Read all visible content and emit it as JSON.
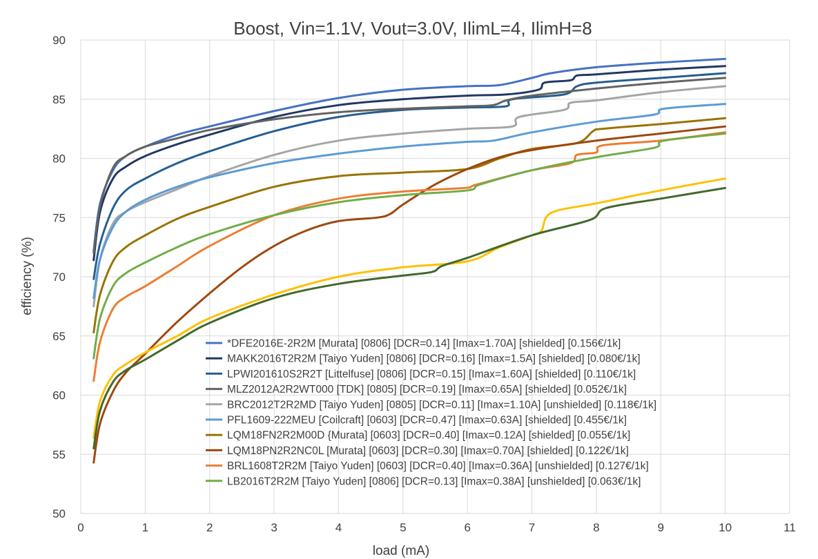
{
  "chart_data": {
    "type": "line",
    "title": "Boost, Vin=1.1V, Vout=3.0V, IlimL=4, IlimH=8",
    "xlabel": "load (mA)",
    "ylabel": "efficiency (%)",
    "xlim": [
      0,
      11
    ],
    "ylim": [
      50,
      90
    ],
    "xticks": [
      0,
      1,
      2,
      3,
      4,
      5,
      6,
      7,
      8,
      9,
      10,
      11
    ],
    "yticks": [
      50,
      55,
      60,
      65,
      70,
      75,
      80,
      85,
      90
    ],
    "grid": true,
    "legend_position": "bottom-right",
    "series": [
      {
        "name": "*DFE2016E-2R2M [Murata] [0806] [DCR=0.14] [Imax=1.70A] [shielded] [0.156€/1k]",
        "color": "#4472c4",
        "points": [
          [
            0.2,
            72.2
          ],
          [
            0.3,
            76.2
          ],
          [
            0.5,
            79.0
          ],
          [
            0.7,
            80.2
          ],
          [
            1,
            81.0
          ],
          [
            1.5,
            82.0
          ],
          [
            2,
            82.7
          ],
          [
            3,
            84.0
          ],
          [
            4,
            85.1
          ],
          [
            5,
            85.8
          ],
          [
            6,
            86.1
          ],
          [
            6.5,
            86.2
          ],
          [
            7,
            86.8
          ],
          [
            7.3,
            87.2
          ],
          [
            8,
            87.7
          ],
          [
            9,
            88.1
          ],
          [
            10,
            88.4
          ]
        ]
      },
      {
        "name": "MAKK2016T2R2M [Taiyo Yuden] [0806] [DCR=0.16] [Imax=1.5A] [shielded] [0.080€/1k]",
        "color": "#203864",
        "points": [
          [
            0.2,
            71.4
          ],
          [
            0.3,
            75.5
          ],
          [
            0.5,
            78.3
          ],
          [
            0.7,
            79.3
          ],
          [
            1,
            80.2
          ],
          [
            1.5,
            81.2
          ],
          [
            2,
            82.0
          ],
          [
            3,
            83.5
          ],
          [
            4,
            84.5
          ],
          [
            5,
            85.0
          ],
          [
            6,
            85.3
          ],
          [
            6.6,
            85.4
          ],
          [
            7.1,
            85.8
          ],
          [
            7.2,
            86.4
          ],
          [
            7.6,
            86.6
          ],
          [
            7.7,
            87.0
          ],
          [
            8,
            87.1
          ],
          [
            9,
            87.5
          ],
          [
            10,
            87.8
          ]
        ]
      },
      {
        "name": "LPWI201610S2R2T [Littelfuse] [0806] [DCR=0.15] [Imax=1.60A] [shielded] [0.110€/1k]",
        "color": "#255e91",
        "points": [
          [
            0.2,
            69.8
          ],
          [
            0.3,
            72.8
          ],
          [
            0.5,
            75.8
          ],
          [
            0.7,
            77.3
          ],
          [
            1,
            78.3
          ],
          [
            1.5,
            79.6
          ],
          [
            2,
            80.6
          ],
          [
            3,
            82.3
          ],
          [
            4,
            83.5
          ],
          [
            5,
            84.1
          ],
          [
            6,
            84.3
          ],
          [
            6.6,
            84.4
          ],
          [
            6.7,
            85.0
          ],
          [
            7.5,
            85.4
          ],
          [
            7.7,
            86.1
          ],
          [
            8,
            86.4
          ],
          [
            9,
            86.8
          ],
          [
            10,
            87.2
          ]
        ]
      },
      {
        "name": "MLZ2012A2R2WT000 [TDK] [0805] [DCR=0.19] [Imax=0.65A] [shielded] [0.052€/1k]",
        "color": "#636363",
        "points": [
          [
            0.2,
            72.0
          ],
          [
            0.3,
            76.0
          ],
          [
            0.5,
            79.2
          ],
          [
            0.7,
            80.2
          ],
          [
            1,
            81.0
          ],
          [
            1.5,
            81.7
          ],
          [
            2,
            82.4
          ],
          [
            3,
            83.3
          ],
          [
            4,
            83.9
          ],
          [
            5,
            84.2
          ],
          [
            6,
            84.4
          ],
          [
            6.4,
            84.5
          ],
          [
            6.6,
            84.9
          ],
          [
            7,
            85.3
          ],
          [
            8,
            85.9
          ],
          [
            9,
            86.4
          ],
          [
            10,
            86.8
          ]
        ]
      },
      {
        "name": "BRC2012T2R2MD [Taiyo Yuden] [0805] [DCR=0.11] [Imax=1.10A] [unshielded] [0.118€/1k]",
        "color": "#a5a5a5",
        "points": [
          [
            0.2,
            67.5
          ],
          [
            0.3,
            71.5
          ],
          [
            0.5,
            74.5
          ],
          [
            0.7,
            75.5
          ],
          [
            1,
            76.3
          ],
          [
            1.5,
            77.4
          ],
          [
            2,
            78.5
          ],
          [
            3,
            80.3
          ],
          [
            4,
            81.5
          ],
          [
            5,
            82.1
          ],
          [
            6,
            82.5
          ],
          [
            6.7,
            82.7
          ],
          [
            6.8,
            83.5
          ],
          [
            7.5,
            84.1
          ],
          [
            7.6,
            84.7
          ],
          [
            8,
            84.9
          ],
          [
            9,
            85.6
          ],
          [
            10,
            86.1
          ]
        ]
      },
      {
        "name": "PFL1609-222MEU [Coilcraft] [0603] [DCR=0.47] [Imax=0.63A] [shielded] [0.455€/1k]",
        "color": "#5b9bd5",
        "points": [
          [
            0.2,
            68.2
          ],
          [
            0.3,
            71.5
          ],
          [
            0.5,
            74.2
          ],
          [
            0.7,
            75.5
          ],
          [
            1,
            76.5
          ],
          [
            1.5,
            77.6
          ],
          [
            2,
            78.4
          ],
          [
            3,
            79.6
          ],
          [
            4,
            80.4
          ],
          [
            5,
            81.0
          ],
          [
            6,
            81.4
          ],
          [
            6.4,
            81.5
          ],
          [
            7,
            82.2
          ],
          [
            8,
            83.1
          ],
          [
            8.9,
            83.7
          ],
          [
            9.05,
            84.2
          ],
          [
            10,
            84.6
          ]
        ]
      },
      {
        "name": "LQM18FN2R2M00D {Murata] [0603] [DCR=0.40] [Imax=0.12A] [shielded] [0.055€/1k]",
        "color": "#997300",
        "points": [
          [
            0.2,
            65.3
          ],
          [
            0.3,
            68.5
          ],
          [
            0.5,
            71.3
          ],
          [
            0.7,
            72.5
          ],
          [
            1,
            73.5
          ],
          [
            1.5,
            74.9
          ],
          [
            2,
            75.9
          ],
          [
            3,
            77.6
          ],
          [
            4,
            78.5
          ],
          [
            5,
            78.8
          ],
          [
            6,
            79.1
          ],
          [
            6.5,
            80.0
          ],
          [
            7,
            80.8
          ],
          [
            7.7,
            81.3
          ],
          [
            7.95,
            82.3
          ],
          [
            8.1,
            82.5
          ],
          [
            9,
            82.9
          ],
          [
            10,
            83.4
          ]
        ]
      },
      {
        "name": "LQM18PN2R2NC0L [Murata] [0603] [DCR=0.30] [Imax=0.70A] [shielded] [0.122€/1k]",
        "color": "#9e480e",
        "points": [
          [
            0.2,
            54.3
          ],
          [
            0.3,
            57.6
          ],
          [
            0.5,
            60.3
          ],
          [
            0.7,
            61.9
          ],
          [
            1,
            63.5
          ],
          [
            1.5,
            66.2
          ],
          [
            2,
            68.6
          ],
          [
            2.5,
            70.8
          ],
          [
            3,
            72.6
          ],
          [
            3.5,
            73.9
          ],
          [
            4,
            74.7
          ],
          [
            4.6,
            75.0
          ],
          [
            4.8,
            75.3
          ],
          [
            5,
            76.1
          ],
          [
            5.5,
            77.8
          ],
          [
            6,
            79.1
          ],
          [
            6.5,
            80.1
          ],
          [
            7,
            80.7
          ],
          [
            8,
            81.5
          ],
          [
            9,
            82.1
          ],
          [
            10,
            82.7
          ]
        ]
      },
      {
        "name": "BRL1608T2R2M [Taiyo Yuden] [0603] [DCR=0.40] [Imax=0.36A] [unshielded] [0.127€/1k]",
        "color": "#ed7d31",
        "points": [
          [
            0.2,
            61.2
          ],
          [
            0.3,
            64.5
          ],
          [
            0.5,
            67.3
          ],
          [
            0.7,
            68.3
          ],
          [
            1,
            69.2
          ],
          [
            1.5,
            70.9
          ],
          [
            2,
            72.6
          ],
          [
            3,
            75.2
          ],
          [
            4,
            76.6
          ],
          [
            5,
            77.2
          ],
          [
            5.95,
            77.5
          ],
          [
            6.15,
            77.8
          ],
          [
            7,
            79.0
          ],
          [
            7.6,
            79.6
          ],
          [
            7.7,
            80.3
          ],
          [
            8,
            80.5
          ],
          [
            8.1,
            81.1
          ],
          [
            9,
            81.5
          ],
          [
            10,
            82.2
          ]
        ]
      },
      {
        "name": "LB2016T2R2M [Taiyo Yuden] [0806] [DCR=0.13] [Imax=0.38A] [unshielded] [0.063€/1k]",
        "color": "#70ad47",
        "points": [
          [
            0.2,
            63.1
          ],
          [
            0.3,
            66.5
          ],
          [
            0.5,
            69.2
          ],
          [
            0.7,
            70.3
          ],
          [
            1,
            71.2
          ],
          [
            1.5,
            72.5
          ],
          [
            2,
            73.6
          ],
          [
            3,
            75.2
          ],
          [
            4,
            76.3
          ],
          [
            5,
            76.9
          ],
          [
            6,
            77.3
          ],
          [
            6.2,
            77.8
          ],
          [
            7,
            79.0
          ],
          [
            8,
            80.1
          ],
          [
            8.9,
            80.9
          ],
          [
            9.05,
            81.5
          ],
          [
            10,
            82.1
          ]
        ]
      },
      {
        "name": "",
        "color": "#ffc000",
        "points": [
          [
            0.2,
            56.4
          ],
          [
            0.3,
            59.5
          ],
          [
            0.5,
            61.7
          ],
          [
            0.7,
            62.6
          ],
          [
            1,
            63.6
          ],
          [
            1.5,
            65.0
          ],
          [
            2,
            66.5
          ],
          [
            3,
            68.5
          ],
          [
            4,
            70.0
          ],
          [
            5,
            70.8
          ],
          [
            6,
            71.3
          ],
          [
            6.5,
            72.5
          ],
          [
            7,
            73.5
          ],
          [
            7.15,
            73.9
          ],
          [
            7.3,
            75.4
          ],
          [
            8,
            76.2
          ],
          [
            9,
            77.3
          ],
          [
            10,
            78.3
          ]
        ]
      },
      {
        "name": "",
        "color": "#43682b",
        "points": [
          [
            0.2,
            55.5
          ],
          [
            0.3,
            58.7
          ],
          [
            0.5,
            61.1
          ],
          [
            0.7,
            62.1
          ],
          [
            1,
            63.0
          ],
          [
            1.5,
            64.6
          ],
          [
            2,
            66.1
          ],
          [
            3,
            68.2
          ],
          [
            4,
            69.4
          ],
          [
            5,
            70.1
          ],
          [
            5.45,
            70.4
          ],
          [
            5.6,
            70.9
          ],
          [
            6,
            71.6
          ],
          [
            7,
            73.5
          ],
          [
            7.9,
            74.8
          ],
          [
            8.15,
            75.8
          ],
          [
            9,
            76.6
          ],
          [
            10,
            77.5
          ]
        ]
      }
    ]
  }
}
